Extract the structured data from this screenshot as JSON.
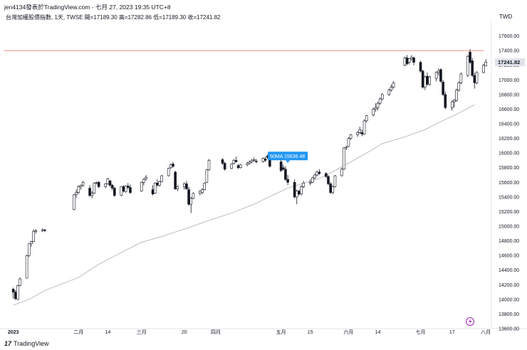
{
  "header": {
    "title": "jen4134發表於TradingView.com - 七月 27, 2023 19:35 UTC+8",
    "legend": "台灣加權股價指數, 1天, TWSE  開=17189.30  高=17282.86  低=17189.30  收=17241.82",
    "currency": "TWD"
  },
  "footer": {
    "logo_glyph": "17",
    "logo_text": "TradingView"
  },
  "colors": {
    "up": "#ffffff",
    "down": "#131722",
    "wick": "#131722",
    "ma": "#b2b5be",
    "hline": "#f28b82",
    "tag": "#2196f3",
    "last_price": "#e0e3eb",
    "grid_axis": "#e0e3eb",
    "alert": "#9c27b0"
  },
  "chart_data": {
    "type": "candlestick",
    "title": "",
    "xlabel": "",
    "ylabel": "",
    "ylim": [
      13600,
      17800
    ],
    "grid": false,
    "x_range": [
      "2022-12-30",
      "2023-07-31"
    ],
    "y_ticks": [
      13600,
      13800,
      14000,
      14200,
      14400,
      14600,
      14800,
      15000,
      15200,
      15400,
      15600,
      15800,
      16000,
      16200,
      16400,
      16600,
      16800,
      17000,
      17200,
      17400,
      17600
    ],
    "x_ticks": [
      {
        "date": "2023-01-03",
        "label": "2023"
      },
      {
        "date": "2023-02-01",
        "label": "二月"
      },
      {
        "date": "2023-02-14",
        "label": "14"
      },
      {
        "date": "2023-03-01",
        "label": "三月"
      },
      {
        "date": "2023-03-20",
        "label": "20"
      },
      {
        "date": "2023-04-03",
        "label": "四月"
      },
      {
        "date": "2023-05-02",
        "label": "五月"
      },
      {
        "date": "2023-05-15",
        "label": "15"
      },
      {
        "date": "2023-06-01",
        "label": "六月"
      },
      {
        "date": "2023-06-14",
        "label": "14"
      },
      {
        "date": "2023-07-03",
        "label": "七月"
      },
      {
        "date": "2023-07-17",
        "label": "17"
      },
      {
        "date": "2023-08-01",
        "label": "八月"
      }
    ],
    "horizontal_line": 17400,
    "last_price": {
      "value": 17241.82,
      "label": "17241.82"
    },
    "ma": {
      "name": "60MA",
      "label": "60MA 15636.48",
      "value": 15636.48,
      "label_date": "2023-05-05",
      "points": [
        [
          "2023-01-03",
          13920
        ],
        [
          "2023-01-10",
          14000
        ],
        [
          "2023-01-17",
          14120
        ],
        [
          "2023-02-01",
          14300
        ],
        [
          "2023-02-10",
          14480
        ],
        [
          "2023-02-20",
          14640
        ],
        [
          "2023-03-01",
          14780
        ],
        [
          "2023-03-10",
          14860
        ],
        [
          "2023-03-20",
          14960
        ],
        [
          "2023-03-31",
          15080
        ],
        [
          "2023-04-10",
          15180
        ],
        [
          "2023-04-20",
          15300
        ],
        [
          "2023-04-28",
          15420
        ],
        [
          "2023-05-05",
          15520
        ],
        [
          "2023-05-12",
          15590
        ],
        [
          "2023-05-19",
          15650
        ],
        [
          "2023-05-26",
          15760
        ],
        [
          "2023-06-02",
          15880
        ],
        [
          "2023-06-09",
          16000
        ],
        [
          "2023-06-16",
          16130
        ],
        [
          "2023-06-26",
          16220
        ],
        [
          "2023-07-05",
          16320
        ],
        [
          "2023-07-12",
          16430
        ],
        [
          "2023-07-19",
          16530
        ],
        [
          "2023-07-27",
          16660
        ]
      ]
    },
    "candles": [
      [
        "2023-01-03",
        14140,
        14160,
        14010,
        14100
      ],
      [
        "2023-01-04",
        14100,
        14130,
        13990,
        14010
      ],
      [
        "2023-01-05",
        14000,
        14200,
        13990,
        14190
      ],
      [
        "2023-01-06",
        14190,
        14300,
        14180,
        14280
      ],
      [
        "2023-01-09",
        14290,
        14610,
        14290,
        14600
      ],
      [
        "2023-01-10",
        14600,
        14760,
        14580,
        14760
      ],
      [
        "2023-01-11",
        14760,
        14800,
        14720,
        14790
      ],
      [
        "2023-01-12",
        14790,
        14960,
        14780,
        14930
      ],
      [
        "2023-01-13",
        14930,
        14960,
        14900,
        14940
      ],
      [
        "2023-01-16",
        14940,
        14970,
        14920,
        14950
      ],
      [
        "2023-01-17",
        14950,
        14960,
        14920,
        14940
      ],
      [
        "2023-01-30",
        15230,
        15440,
        15220,
        15430
      ],
      [
        "2023-01-31",
        15430,
        15500,
        15390,
        15460
      ],
      [
        "2023-02-01",
        15460,
        15560,
        15440,
        15540
      ],
      [
        "2023-02-02",
        15540,
        15570,
        15500,
        15560
      ],
      [
        "2023-02-03",
        15560,
        15620,
        15540,
        15600
      ],
      [
        "2023-02-06",
        15520,
        15560,
        15400,
        15420
      ],
      [
        "2023-02-07",
        15420,
        15480,
        15380,
        15450
      ],
      [
        "2023-02-08",
        15450,
        15600,
        15440,
        15590
      ],
      [
        "2023-02-09",
        15590,
        15610,
        15570,
        15600
      ],
      [
        "2023-02-10",
        15600,
        15620,
        15520,
        15540
      ],
      [
        "2023-02-13",
        15540,
        15590,
        15520,
        15580
      ],
      [
        "2023-02-14",
        15580,
        15660,
        15570,
        15650
      ],
      [
        "2023-02-15",
        15620,
        15630,
        15540,
        15560
      ],
      [
        "2023-02-16",
        15560,
        15580,
        15490,
        15520
      ],
      [
        "2023-02-17",
        15520,
        15540,
        15400,
        15420
      ],
      [
        "2023-02-20",
        15420,
        15550,
        15410,
        15540
      ],
      [
        "2023-02-21",
        15540,
        15560,
        15460,
        15480
      ],
      [
        "2023-02-22",
        15470,
        15560,
        15460,
        15550
      ],
      [
        "2023-02-23",
        15550,
        15590,
        15510,
        15530
      ],
      [
        "2023-02-24",
        15530,
        15570,
        15440,
        15460
      ],
      [
        "2023-03-01",
        15480,
        15610,
        15470,
        15600
      ],
      [
        "2023-03-02",
        15600,
        15660,
        15560,
        15640
      ],
      [
        "2023-03-03",
        15650,
        15700,
        15620,
        15670
      ],
      [
        "2023-03-06",
        15500,
        15560,
        15420,
        15440
      ],
      [
        "2023-03-07",
        15450,
        15600,
        15440,
        15590
      ],
      [
        "2023-03-08",
        15590,
        15640,
        15540,
        15560
      ],
      [
        "2023-03-09",
        15560,
        15620,
        15540,
        15610
      ],
      [
        "2023-03-10",
        15610,
        15700,
        15600,
        15690
      ],
      [
        "2023-03-13",
        15690,
        15800,
        15680,
        15790
      ],
      [
        "2023-03-14",
        15800,
        15860,
        15780,
        15840
      ],
      [
        "2023-03-15",
        15850,
        15880,
        15800,
        15820
      ],
      [
        "2023-03-16",
        15740,
        15760,
        15500,
        15510
      ],
      [
        "2023-03-17",
        15510,
        15560,
        15480,
        15540
      ],
      [
        "2023-03-20",
        15540,
        15600,
        15500,
        15580
      ],
      [
        "2023-03-21",
        15580,
        15620,
        15500,
        15510
      ],
      [
        "2023-03-22",
        15500,
        15540,
        15280,
        15300
      ],
      [
        "2023-03-23",
        15300,
        15400,
        15180,
        15380
      ],
      [
        "2023-03-24",
        15380,
        15460,
        15370,
        15450
      ],
      [
        "2023-03-27",
        15450,
        15490,
        15420,
        15480
      ],
      [
        "2023-03-28",
        15460,
        15520,
        15440,
        15500
      ],
      [
        "2023-03-29",
        15500,
        15600,
        15490,
        15590
      ],
      [
        "2023-03-30",
        15600,
        15780,
        15590,
        15770
      ],
      [
        "2023-03-31",
        15770,
        15920,
        15760,
        15900
      ],
      [
        "2023-04-06",
        15910,
        15930,
        15840,
        15860
      ],
      [
        "2023-04-07",
        15860,
        15880,
        15760,
        15780
      ],
      [
        "2023-04-10",
        15790,
        15860,
        15780,
        15850
      ],
      [
        "2023-04-11",
        15860,
        15920,
        15840,
        15900
      ],
      [
        "2023-04-12",
        15900,
        15950,
        15870,
        15880
      ],
      [
        "2023-04-13",
        15830,
        15850,
        15780,
        15800
      ],
      [
        "2023-04-14",
        15800,
        15850,
        15790,
        15840
      ],
      [
        "2023-04-17",
        15840,
        15880,
        15820,
        15860
      ],
      [
        "2023-04-18",
        15860,
        15900,
        15840,
        15880
      ],
      [
        "2023-04-19",
        15880,
        15920,
        15860,
        15900
      ],
      [
        "2023-04-20",
        15900,
        15940,
        15880,
        15910
      ],
      [
        "2023-04-21",
        15890,
        15920,
        15860,
        15880
      ],
      [
        "2023-04-24",
        15880,
        15940,
        15870,
        15930
      ],
      [
        "2023-04-25",
        15920,
        15950,
        15880,
        15900
      ],
      [
        "2023-04-26",
        15960,
        15980,
        15920,
        15940
      ],
      [
        "2023-04-27",
        15940,
        15960,
        15800,
        15820
      ],
      [
        "2023-04-28",
        15920,
        15980,
        15900,
        15960
      ],
      [
        "2023-05-02",
        15880,
        15920,
        15740,
        15760
      ],
      [
        "2023-05-03",
        15800,
        15840,
        15760,
        15780
      ],
      [
        "2023-05-04",
        15780,
        15820,
        15620,
        15640
      ],
      [
        "2023-05-05",
        15640,
        15700,
        15560,
        15600
      ],
      [
        "2023-05-08",
        15600,
        15640,
        15380,
        15400
      ],
      [
        "2023-05-09",
        15400,
        15500,
        15300,
        15480
      ],
      [
        "2023-05-10",
        15480,
        15500,
        15420,
        15440
      ],
      [
        "2023-05-11",
        15440,
        15560,
        15420,
        15540
      ],
      [
        "2023-05-12",
        15540,
        15620,
        15520,
        15590
      ],
      [
        "2023-05-15",
        15590,
        15640,
        15560,
        15600
      ],
      [
        "2023-05-16",
        15600,
        15680,
        15590,
        15660
      ],
      [
        "2023-05-17",
        15660,
        15720,
        15640,
        15700
      ],
      [
        "2023-05-18",
        15700,
        15760,
        15680,
        15740
      ],
      [
        "2023-05-19",
        15740,
        15780,
        15700,
        15720
      ],
      [
        "2023-05-22",
        15720,
        15740,
        15660,
        15680
      ],
      [
        "2023-05-23",
        15680,
        15700,
        15560,
        15580
      ],
      [
        "2023-05-24",
        15580,
        15600,
        15440,
        15460
      ],
      [
        "2023-05-25",
        15460,
        15560,
        15440,
        15540
      ],
      [
        "2023-05-26",
        15540,
        15700,
        15530,
        15690
      ],
      [
        "2023-05-29",
        15690,
        15800,
        15680,
        15780
      ],
      [
        "2023-05-30",
        15780,
        16080,
        15770,
        16070
      ],
      [
        "2023-05-31",
        16070,
        16100,
        16040,
        16080
      ],
      [
        "2023-06-01",
        16090,
        16220,
        16080,
        16200
      ],
      [
        "2023-06-02",
        16200,
        16260,
        16180,
        16250
      ],
      [
        "2023-06-05",
        16250,
        16300,
        16220,
        16280
      ],
      [
        "2023-06-06",
        16280,
        16360,
        16260,
        16320
      ],
      [
        "2023-06-07",
        16280,
        16320,
        16230,
        16260
      ],
      [
        "2023-06-08",
        16260,
        16460,
        16250,
        16440
      ],
      [
        "2023-06-09",
        16440,
        16520,
        16420,
        16510
      ],
      [
        "2023-06-12",
        16520,
        16620,
        16500,
        16600
      ],
      [
        "2023-06-13",
        16600,
        16680,
        16560,
        16620
      ],
      [
        "2023-06-14",
        16620,
        16700,
        16580,
        16680
      ],
      [
        "2023-06-15",
        16680,
        16760,
        16660,
        16740
      ],
      [
        "2023-06-16",
        16740,
        16820,
        16720,
        16800
      ],
      [
        "2023-06-19",
        16800,
        16880,
        16780,
        16860
      ],
      [
        "2023-06-20",
        16860,
        16940,
        16840,
        16900
      ],
      [
        "2023-06-21",
        16900,
        16980,
        16880,
        16960
      ],
      [
        "2023-06-26",
        17200,
        17320,
        17190,
        17300
      ],
      [
        "2023-06-27",
        17300,
        17340,
        17200,
        17220
      ],
      [
        "2023-06-28",
        17240,
        17300,
        17210,
        17290
      ],
      [
        "2023-06-29",
        17290,
        17340,
        17260,
        17310
      ],
      [
        "2023-06-30",
        17300,
        17320,
        17200,
        17240
      ],
      [
        "2023-07-03",
        17240,
        17260,
        17100,
        17120
      ],
      [
        "2023-07-04",
        17120,
        17140,
        16880,
        16900
      ],
      [
        "2023-07-05",
        16900,
        17060,
        16860,
        17040
      ],
      [
        "2023-07-06",
        17050,
        17100,
        16920,
        16940
      ],
      [
        "2023-07-07",
        16940,
        17060,
        16920,
        17040
      ],
      [
        "2023-07-10",
        17020,
        17120,
        16980,
        17100
      ],
      [
        "2023-07-11",
        17100,
        17160,
        17060,
        17120
      ],
      [
        "2023-07-12",
        17140,
        17160,
        16960,
        16980
      ],
      [
        "2023-07-13",
        16970,
        17000,
        16780,
        16800
      ],
      [
        "2023-07-14",
        16800,
        16840,
        16600,
        16620
      ],
      [
        "2023-07-17",
        16620,
        16720,
        16580,
        16700
      ],
      [
        "2023-07-18",
        16700,
        16740,
        16620,
        16720
      ],
      [
        "2023-07-19",
        16720,
        16880,
        16700,
        16860
      ],
      [
        "2023-07-20",
        16860,
        16980,
        16840,
        16960
      ],
      [
        "2023-07-21",
        16960,
        17100,
        16940,
        17080
      ],
      [
        "2023-07-24",
        17060,
        17340,
        17040,
        17320
      ],
      [
        "2023-07-25",
        17380,
        17420,
        17220,
        17240
      ],
      [
        "2023-07-26",
        17260,
        17300,
        17040,
        17060
      ],
      [
        "2023-07-27",
        17060,
        17100,
        16880,
        16960
      ],
      [
        "2023-07-28",
        16960,
        17120,
        16940,
        17100
      ],
      [
        "2023-07-31",
        17100,
        17220,
        17090,
        17200
      ],
      [
        "2023-08-01",
        17189.3,
        17282.86,
        17189.3,
        17241.82
      ]
    ]
  }
}
